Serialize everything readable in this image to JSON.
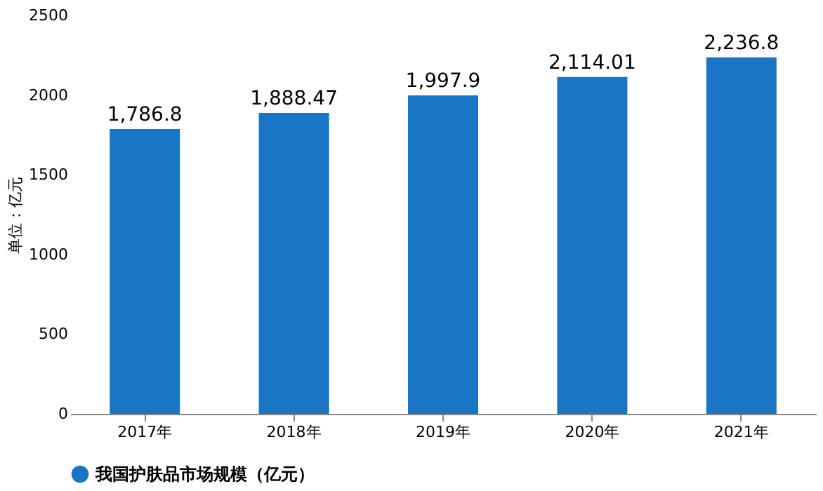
{
  "chart_data": {
    "type": "bar",
    "categories": [
      "2017年",
      "2018年",
      "2019年",
      "2020年",
      "2021年"
    ],
    "ylabel": "单位：亿元",
    "series": [
      {
        "name": "我国护肤品市场规模（亿元）",
        "color": "#1a75c4",
        "values": [
          1786.8,
          1888.47,
          1997.9,
          2114.01,
          2236.8
        ],
        "value_labels": [
          "1,786.8",
          "1,888.47",
          "1,997.9",
          "2,114.01",
          "2,236.8"
        ]
      }
    ],
    "ylim": [
      0,
      2500
    ],
    "yticks": [
      0,
      500,
      1000,
      1500,
      2000,
      2500
    ],
    "grid": false,
    "legend": "bottom"
  }
}
